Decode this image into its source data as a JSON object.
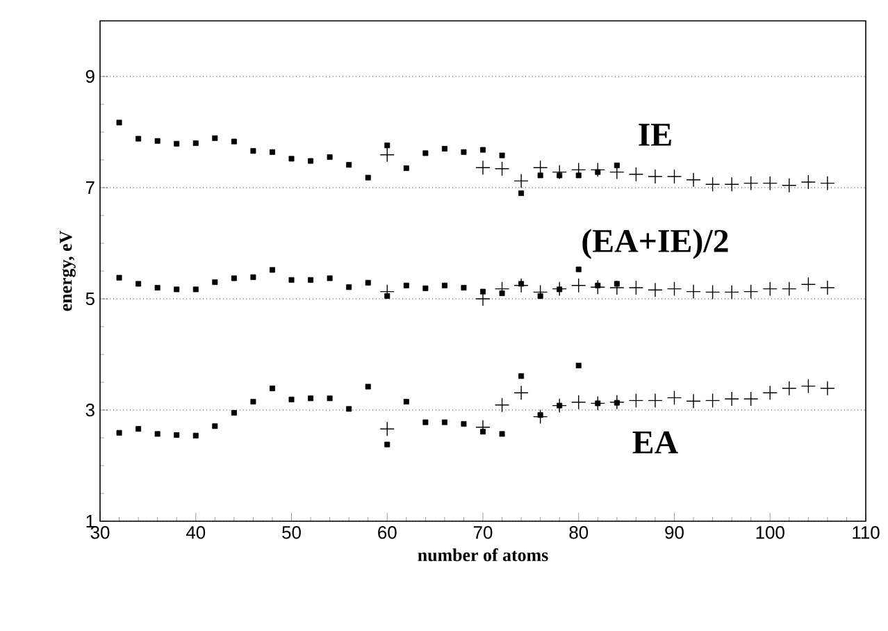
{
  "chart_data": {
    "type": "scatter",
    "xlabel": "number of atoms",
    "ylabel": "energy, eV",
    "xlim": [
      30,
      110
    ],
    "ylim": [
      1,
      10
    ],
    "xticks": [
      30,
      40,
      50,
      60,
      70,
      80,
      90,
      100,
      110
    ],
    "yticks": [
      1,
      3,
      5,
      7,
      9
    ],
    "grid": "y",
    "series": [
      {
        "color": "#000000",
        "marker": "square",
        "x": [
          32,
          34,
          36,
          38,
          40,
          42,
          44,
          46,
          48,
          50,
          52,
          54,
          56,
          58,
          60,
          62,
          64,
          66,
          68,
          70,
          72,
          74,
          76,
          78,
          80,
          82,
          84
        ],
        "values": [
          8.17,
          7.88,
          7.84,
          7.79,
          7.8,
          7.89,
          7.83,
          7.66,
          7.64,
          7.52,
          7.48,
          7.55,
          7.41,
          7.18,
          7.76,
          7.35,
          7.62,
          7.7,
          7.64,
          7.68,
          7.58,
          6.9,
          7.22,
          7.22,
          7.22,
          7.28,
          7.4
        ]
      },
      {
        "color": "#000000",
        "marker": "cross",
        "x": [
          60,
          70,
          72,
          74,
          76,
          78,
          80,
          82,
          84,
          86,
          88,
          90,
          92,
          94,
          96,
          98,
          100,
          102,
          104,
          106
        ],
        "values": [
          7.59,
          7.36,
          7.34,
          7.12,
          7.36,
          7.28,
          7.32,
          7.32,
          7.28,
          7.24,
          7.2,
          7.2,
          7.14,
          7.06,
          7.06,
          7.08,
          7.08,
          7.04,
          7.1,
          7.08
        ]
      },
      {
        "color": "#000000",
        "marker": "square",
        "x": [
          32,
          34,
          36,
          38,
          40,
          42,
          44,
          46,
          48,
          50,
          52,
          54,
          56,
          58,
          60,
          62,
          64,
          66,
          68,
          70,
          72,
          74,
          76,
          78,
          80,
          82,
          84
        ],
        "values": [
          5.38,
          5.27,
          5.2,
          5.17,
          5.17,
          5.3,
          5.37,
          5.39,
          5.52,
          5.34,
          5.34,
          5.37,
          5.21,
          5.29,
          5.05,
          5.24,
          5.19,
          5.24,
          5.2,
          5.13,
          5.1,
          5.27,
          5.05,
          5.17,
          5.53,
          5.24,
          5.27
        ]
      },
      {
        "color": "#000000",
        "marker": "cross",
        "x": [
          60,
          70,
          72,
          74,
          76,
          78,
          80,
          82,
          84,
          86,
          88,
          90,
          92,
          94,
          96,
          98,
          100,
          102,
          104,
          106
        ],
        "values": [
          5.13,
          5.0,
          5.18,
          5.24,
          5.12,
          5.18,
          5.24,
          5.21,
          5.2,
          5.2,
          5.16,
          5.18,
          5.13,
          5.12,
          5.12,
          5.13,
          5.18,
          5.18,
          5.26,
          5.2
        ]
      },
      {
        "color": "#000000",
        "marker": "square",
        "x": [
          32,
          34,
          36,
          38,
          40,
          42,
          44,
          46,
          48,
          50,
          52,
          54,
          56,
          58,
          60,
          62,
          64,
          66,
          68,
          70,
          72,
          74,
          76,
          78,
          80,
          82,
          84
        ],
        "values": [
          2.59,
          2.66,
          2.57,
          2.55,
          2.54,
          2.71,
          2.95,
          3.15,
          3.39,
          3.19,
          3.21,
          3.21,
          3.02,
          3.42,
          2.38,
          3.15,
          2.78,
          2.78,
          2.75,
          2.61,
          2.57,
          3.61,
          2.91,
          3.08,
          3.8,
          3.12,
          3.13
        ]
      },
      {
        "color": "#000000",
        "marker": "cross",
        "x": [
          60,
          70,
          72,
          74,
          76,
          78,
          80,
          82,
          84,
          86,
          88,
          90,
          92,
          94,
          96,
          98,
          100,
          102,
          104,
          106
        ],
        "values": [
          2.66,
          2.69,
          3.09,
          3.31,
          2.88,
          3.08,
          3.14,
          3.12,
          3.14,
          3.17,
          3.17,
          3.22,
          3.16,
          3.17,
          3.2,
          3.2,
          3.31,
          3.39,
          3.43,
          3.39
        ]
      }
    ],
    "annotations": [
      "IE",
      "(EA+IE)/2",
      "EA"
    ]
  }
}
